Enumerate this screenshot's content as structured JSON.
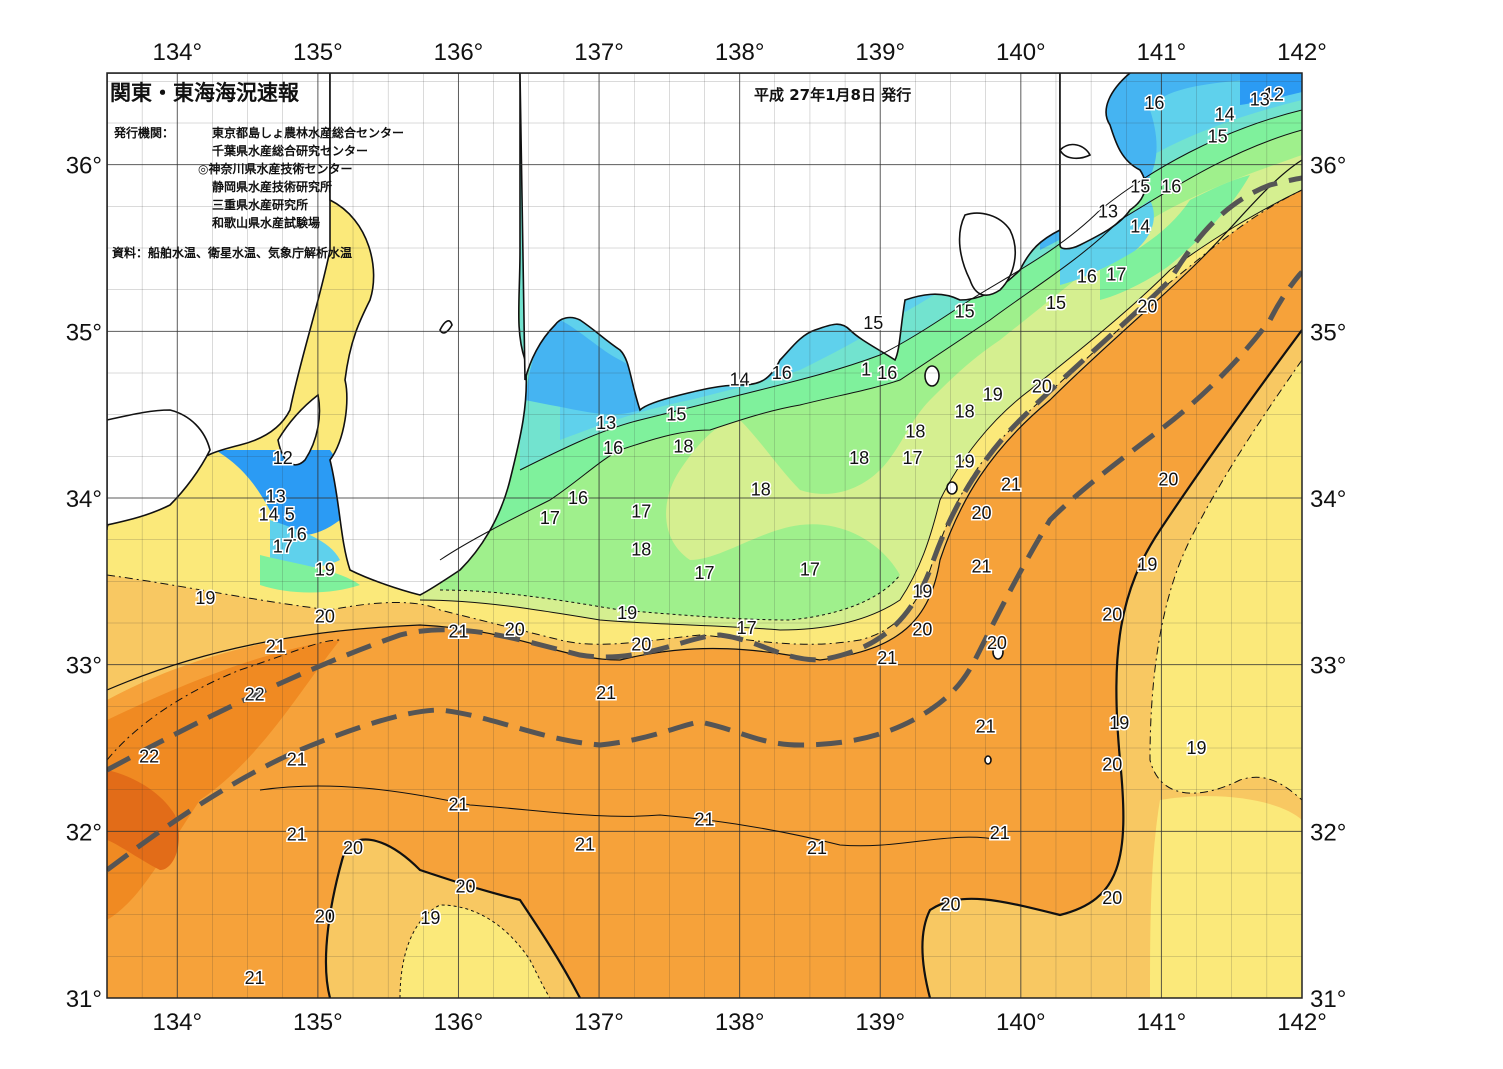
{
  "title": "関東・東海海況速報",
  "issue_date": "平成 27年1月8日 発行",
  "agencies_label": "発行機関：",
  "agencies": [
    "東京都島しょ農林水産総合センター",
    "千葉県水産総合研究センター",
    "◎神奈川県水産技術センター",
    "静岡県水産技術研究所",
    "三重県水産研究所",
    "和歌山県水産試験場"
  ],
  "source_note": "資料：船舶水温、衛星水温、気象庁解析水温",
  "lon_ticks": [
    "134°",
    "135°",
    "136°",
    "137°",
    "138°",
    "139°",
    "140°",
    "141°",
    "142°"
  ],
  "lat_ticks": [
    "36°",
    "35°",
    "34°",
    "33°",
    "32°",
    "31°"
  ],
  "lon_range": [
    133.5,
    142
  ],
  "lat_range": [
    31,
    36.55
  ],
  "colors": {
    "t12": "#2b9bf4",
    "t13": "#45b4f2",
    "t14": "#5fd1ec",
    "t15": "#72e3cf",
    "t16": "#7ff19c",
    "t17": "#9ff08c",
    "t18": "#d5ef90",
    "t19": "#fbe97a",
    "t20": "#f8c862",
    "t21": "#f6a23a",
    "t22": "#f08a22",
    "t23": "#e26c18",
    "land": "#ffffff",
    "front": "#555555",
    "grid": "#333333"
  },
  "labels": [
    {
      "t": "12",
      "lon": 141.8,
      "lat": 36.42
    },
    {
      "t": "13",
      "lon": 141.7,
      "lat": 36.39
    },
    {
      "t": "14",
      "lon": 141.45,
      "lat": 36.3
    },
    {
      "t": "15",
      "lon": 141.4,
      "lat": 36.17
    },
    {
      "t": "16",
      "lon": 140.95,
      "lat": 36.37
    },
    {
      "t": "15",
      "lon": 140.85,
      "lat": 35.87
    },
    {
      "t": "16",
      "lon": 141.07,
      "lat": 35.87
    },
    {
      "t": "13",
      "lon": 140.62,
      "lat": 35.72
    },
    {
      "t": "14",
      "lon": 140.85,
      "lat": 35.63
    },
    {
      "t": "16",
      "lon": 140.47,
      "lat": 35.33
    },
    {
      "t": "17",
      "lon": 140.68,
      "lat": 35.34
    },
    {
      "t": "20",
      "lon": 140.9,
      "lat": 35.15
    },
    {
      "t": "15",
      "lon": 140.25,
      "lat": 35.17
    },
    {
      "t": "15",
      "lon": 139.6,
      "lat": 35.12
    },
    {
      "t": "15",
      "lon": 138.95,
      "lat": 35.05
    },
    {
      "t": "14",
      "lon": 138.0,
      "lat": 34.71
    },
    {
      "t": "16",
      "lon": 138.3,
      "lat": 34.75
    },
    {
      "t": "1",
      "lon": 138.9,
      "lat": 34.77
    },
    {
      "t": "16",
      "lon": 139.05,
      "lat": 34.75
    },
    {
      "t": "13",
      "lon": 137.05,
      "lat": 34.45
    },
    {
      "t": "15",
      "lon": 137.55,
      "lat": 34.5
    },
    {
      "t": "16",
      "lon": 137.1,
      "lat": 34.3
    },
    {
      "t": "18",
      "lon": 137.6,
      "lat": 34.31
    },
    {
      "t": "18",
      "lon": 138.15,
      "lat": 34.05
    },
    {
      "t": "18",
      "lon": 138.85,
      "lat": 34.24
    },
    {
      "t": "18",
      "lon": 139.25,
      "lat": 34.4
    },
    {
      "t": "17",
      "lon": 139.23,
      "lat": 34.24
    },
    {
      "t": "18",
      "lon": 139.6,
      "lat": 34.52
    },
    {
      "t": "19",
      "lon": 139.8,
      "lat": 34.62
    },
    {
      "t": "20",
      "lon": 140.15,
      "lat": 34.67
    },
    {
      "t": "19",
      "lon": 139.6,
      "lat": 34.22
    },
    {
      "t": "21",
      "lon": 139.93,
      "lat": 34.08
    },
    {
      "t": "20",
      "lon": 139.72,
      "lat": 33.91
    },
    {
      "t": "21",
      "lon": 139.72,
      "lat": 33.59
    },
    {
      "t": "19",
      "lon": 139.3,
      "lat": 33.44
    },
    {
      "t": "20",
      "lon": 139.3,
      "lat": 33.21
    },
    {
      "t": "21",
      "lon": 139.05,
      "lat": 33.04
    },
    {
      "t": "20",
      "lon": 139.83,
      "lat": 33.13
    },
    {
      "t": "20",
      "lon": 141.05,
      "lat": 34.11
    },
    {
      "t": "19",
      "lon": 140.9,
      "lat": 33.6
    },
    {
      "t": "20",
      "lon": 140.65,
      "lat": 33.3
    },
    {
      "t": "21",
      "lon": 139.75,
      "lat": 32.63
    },
    {
      "t": "19",
      "lon": 140.7,
      "lat": 32.65
    },
    {
      "t": "20",
      "lon": 140.65,
      "lat": 32.4
    },
    {
      "t": "19",
      "lon": 141.25,
      "lat": 32.5
    },
    {
      "t": "21",
      "lon": 139.85,
      "lat": 31.99
    },
    {
      "t": "20",
      "lon": 139.5,
      "lat": 31.56
    },
    {
      "t": "20",
      "lon": 140.65,
      "lat": 31.6
    },
    {
      "t": "16",
      "lon": 136.85,
      "lat": 34.0
    },
    {
      "t": "17",
      "lon": 136.65,
      "lat": 33.88
    },
    {
      "t": "17",
      "lon": 137.3,
      "lat": 33.92
    },
    {
      "t": "18",
      "lon": 137.3,
      "lat": 33.69
    },
    {
      "t": "17",
      "lon": 137.75,
      "lat": 33.55
    },
    {
      "t": "17",
      "lon": 138.5,
      "lat": 33.57
    },
    {
      "t": "17",
      "lon": 138.05,
      "lat": 33.22
    },
    {
      "t": "19",
      "lon": 137.2,
      "lat": 33.31
    },
    {
      "t": "20",
      "lon": 137.3,
      "lat": 33.12
    },
    {
      "t": "21",
      "lon": 137.05,
      "lat": 32.83
    },
    {
      "t": "21",
      "lon": 136.0,
      "lat": 33.2
    },
    {
      "t": "20",
      "lon": 136.4,
      "lat": 33.21
    },
    {
      "t": "20",
      "lon": 135.05,
      "lat": 33.29
    },
    {
      "t": "21",
      "lon": 134.7,
      "lat": 33.11
    },
    {
      "t": "22",
      "lon": 134.55,
      "lat": 32.82
    },
    {
      "t": "22",
      "lon": 133.8,
      "lat": 32.45
    },
    {
      "t": "21",
      "lon": 134.85,
      "lat": 32.43
    },
    {
      "t": "21",
      "lon": 136.0,
      "lat": 32.16
    },
    {
      "t": "21",
      "lon": 137.75,
      "lat": 32.07
    },
    {
      "t": "21",
      "lon": 138.55,
      "lat": 31.9
    },
    {
      "t": "21",
      "lon": 136.9,
      "lat": 31.92
    },
    {
      "t": "21",
      "lon": 134.85,
      "lat": 31.98
    },
    {
      "t": "20",
      "lon": 135.25,
      "lat": 31.9
    },
    {
      "t": "20",
      "lon": 136.05,
      "lat": 31.67
    },
    {
      "t": "20",
      "lon": 135.05,
      "lat": 31.49
    },
    {
      "t": "19",
      "lon": 135.8,
      "lat": 31.48
    },
    {
      "t": "21",
      "lon": 134.55,
      "lat": 31.12
    },
    {
      "t": "19",
      "lon": 135.05,
      "lat": 33.57
    },
    {
      "t": "19",
      "lon": 134.2,
      "lat": 33.4
    },
    {
      "t": "12",
      "lon": 134.75,
      "lat": 34.24
    },
    {
      "t": "13",
      "lon": 134.7,
      "lat": 34.01
    },
    {
      "t": "14",
      "lon": 134.65,
      "lat": 33.9
    },
    {
      "t": "5",
      "lon": 134.8,
      "lat": 33.9
    },
    {
      "t": "16",
      "lon": 134.85,
      "lat": 33.78
    },
    {
      "t": "17",
      "lon": 134.75,
      "lat": 33.71
    }
  ]
}
